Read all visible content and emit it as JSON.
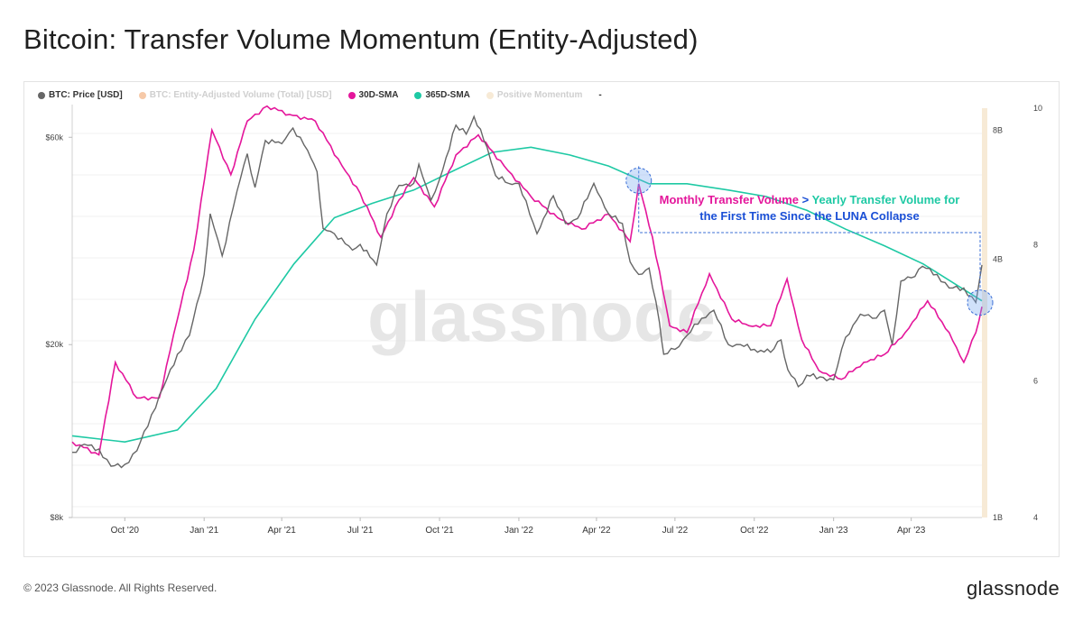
{
  "header": {
    "title": "Bitcoin: Transfer Volume Momentum (Entity-Adjusted)"
  },
  "legend": [
    {
      "label": "BTC: Price [USD]",
      "color": "#666666",
      "muted": false
    },
    {
      "label": "BTC: Entity-Adjusted Volume (Total) [USD]",
      "color": "#f6c9a8",
      "muted": true
    },
    {
      "label": "30D-SMA",
      "color": "#e4169b",
      "muted": false
    },
    {
      "label": "365D-SMA",
      "color": "#1ec9a4",
      "muted": false
    },
    {
      "label": "Positive Momentum",
      "color": "#f7ead6",
      "muted": true
    },
    {
      "label": "-",
      "color": "",
      "muted": false
    }
  ],
  "annotation": {
    "line1_pink": "Monthly Transfer Volume",
    "line1_sep": " > ",
    "line1_green": "Yearly Transfer Volume for",
    "line2": "the First Time Since the LUNA Collapse",
    "pink_color": "#e4169b",
    "green_color": "#1ec9a4",
    "blue_color": "#1a4fd6"
  },
  "watermark": "glassnode",
  "footer": {
    "copyright": "© 2023 Glassnode. All Rights Reserved.",
    "logo": "glassnode"
  },
  "chart_data": {
    "type": "line",
    "x_range": [
      "2020-08-01",
      "2023-06-22"
    ],
    "x_ticks": [
      "Oct '20",
      "Jan '21",
      "Apr '21",
      "Jul '21",
      "Oct '21",
      "Jan '22",
      "Apr '22",
      "Jul '22",
      "Oct '22",
      "Jan '23",
      "Apr '23"
    ],
    "x_tick_dates": [
      "2020-10-01",
      "2021-01-01",
      "2021-04-01",
      "2021-07-01",
      "2021-10-01",
      "2022-01-01",
      "2022-04-01",
      "2022-07-01",
      "2022-10-01",
      "2023-01-01",
      "2023-04-01"
    ],
    "y_left": {
      "scale": "log",
      "range": [
        8000,
        70000
      ],
      "ticks": [
        8000,
        20000,
        60000
      ],
      "tick_labels": [
        "$8k",
        "$20k",
        "$60k"
      ]
    },
    "y_right_volume": {
      "scale": "log",
      "range": [
        1,
        9
      ],
      "ticks": [
        1,
        4,
        8
      ],
      "tick_labels": [
        "1B",
        "4B",
        "8B"
      ]
    },
    "y_right_price_axis": {
      "range": [
        4,
        10
      ],
      "ticks": [
        4,
        6,
        8,
        10
      ],
      "tick_labels": [
        "4",
        "6",
        "8",
        "10"
      ]
    },
    "series": [
      {
        "name": "BTC: Price [USD]",
        "axis": "left",
        "color": "#666666",
        "x": [
          "2020-08-01",
          "2020-08-15",
          "2020-09-01",
          "2020-09-15",
          "2020-10-01",
          "2020-10-15",
          "2020-11-01",
          "2020-11-15",
          "2020-12-01",
          "2020-12-15",
          "2021-01-01",
          "2021-01-08",
          "2021-01-22",
          "2021-02-08",
          "2021-02-20",
          "2021-03-01",
          "2021-03-13",
          "2021-04-01",
          "2021-04-14",
          "2021-05-01",
          "2021-05-12",
          "2021-05-19",
          "2021-06-01",
          "2021-06-22",
          "2021-07-01",
          "2021-07-20",
          "2021-08-01",
          "2021-08-15",
          "2021-09-01",
          "2021-09-07",
          "2021-09-21",
          "2021-10-01",
          "2021-10-20",
          "2021-11-01",
          "2021-11-10",
          "2021-11-25",
          "2021-12-05",
          "2021-12-20",
          "2022-01-01",
          "2022-01-22",
          "2022-02-10",
          "2022-02-24",
          "2022-03-10",
          "2022-03-29",
          "2022-04-15",
          "2022-05-01",
          "2022-05-10",
          "2022-05-20",
          "2022-06-01",
          "2022-06-13",
          "2022-06-18",
          "2022-07-01",
          "2022-07-15",
          "2022-08-01",
          "2022-08-15",
          "2022-09-01",
          "2022-09-15",
          "2022-10-01",
          "2022-10-20",
          "2022-11-01",
          "2022-11-09",
          "2022-11-21",
          "2022-12-01",
          "2022-12-20",
          "2023-01-01",
          "2023-01-15",
          "2023-02-01",
          "2023-02-15",
          "2023-03-01",
          "2023-03-10",
          "2023-03-20",
          "2023-04-01",
          "2023-04-14",
          "2023-05-01",
          "2023-05-15",
          "2023-06-01",
          "2023-06-15",
          "2023-06-22"
        ],
        "values": [
          11300,
          11800,
          11500,
          10500,
          10600,
          11400,
          13800,
          16000,
          19000,
          21000,
          29000,
          40000,
          32000,
          45000,
          55000,
          46000,
          59000,
          58000,
          63000,
          56000,
          50000,
          37000,
          36000,
          33000,
          34000,
          30500,
          40000,
          46500,
          47000,
          52000,
          43000,
          48000,
          64000,
          61000,
          67000,
          57000,
          49000,
          47000,
          47000,
          36000,
          44000,
          38000,
          39000,
          47000,
          40000,
          38000,
          31000,
          29000,
          30000,
          22500,
          19000,
          19500,
          21000,
          23000,
          24000,
          20000,
          20000,
          19500,
          19200,
          20500,
          17500,
          16000,
          17000,
          16800,
          16600,
          20800,
          23500,
          23000,
          24000,
          20000,
          28000,
          28500,
          30300,
          29000,
          27000,
          27000,
          25000,
          30500
        ]
      },
      {
        "name": "30D-SMA",
        "axis": "right",
        "color": "#e4169b",
        "x": [
          "2020-08-01",
          "2020-09-01",
          "2020-09-20",
          "2020-10-15",
          "2020-11-10",
          "2020-12-01",
          "2020-12-20",
          "2021-01-10",
          "2021-02-01",
          "2021-02-20",
          "2021-03-15",
          "2021-04-10",
          "2021-05-10",
          "2021-06-10",
          "2021-07-01",
          "2021-07-25",
          "2021-08-15",
          "2021-09-01",
          "2021-09-25",
          "2021-10-20",
          "2021-11-15",
          "2021-12-15",
          "2022-01-15",
          "2022-02-15",
          "2022-03-15",
          "2022-04-15",
          "2022-05-10",
          "2022-05-20",
          "2022-06-05",
          "2022-06-25",
          "2022-07-15",
          "2022-08-10",
          "2022-09-05",
          "2022-09-25",
          "2022-10-20",
          "2022-11-08",
          "2022-11-25",
          "2022-12-15",
          "2023-01-10",
          "2023-02-05",
          "2023-03-01",
          "2023-03-25",
          "2023-04-20",
          "2023-05-15",
          "2023-06-01",
          "2023-06-15",
          "2023-06-22"
        ],
        "values": [
          1.5,
          1.4,
          2.3,
          1.9,
          1.9,
          2.9,
          4.2,
          8.0,
          6.3,
          8.4,
          9.1,
          8.7,
          8.4,
          6.6,
          5.7,
          4.5,
          5.5,
          6.2,
          5.3,
          7.0,
          7.8,
          6.6,
          5.6,
          5.0,
          4.7,
          5.1,
          4.4,
          6.0,
          4.5,
          2.8,
          2.7,
          3.7,
          2.9,
          2.8,
          2.8,
          3.6,
          2.6,
          2.2,
          2.1,
          2.3,
          2.4,
          2.7,
          3.2,
          2.7,
          2.3,
          2.7,
          3.1
        ]
      },
      {
        "name": "365D-SMA",
        "axis": "right",
        "color": "#1ec9a4",
        "x": [
          "2020-08-01",
          "2020-10-01",
          "2020-12-01",
          "2021-01-15",
          "2021-03-01",
          "2021-04-15",
          "2021-06-01",
          "2021-07-15",
          "2021-09-01",
          "2021-10-15",
          "2021-12-01",
          "2022-01-15",
          "2022-03-01",
          "2022-04-15",
          "2022-06-01",
          "2022-07-15",
          "2022-09-01",
          "2022-10-15",
          "2022-12-01",
          "2023-01-15",
          "2023-03-01",
          "2023-04-15",
          "2023-06-01",
          "2023-06-22"
        ],
        "values": [
          1.55,
          1.5,
          1.6,
          2.0,
          2.9,
          3.9,
          5.0,
          5.4,
          5.8,
          6.4,
          7.1,
          7.3,
          7.0,
          6.6,
          6.0,
          6.0,
          5.8,
          5.6,
          5.2,
          4.7,
          4.3,
          3.9,
          3.4,
          3.2
        ]
      }
    ],
    "annotation_points": [
      {
        "date": "2022-05-20",
        "volume": 6.1,
        "label": "LUNA collapse crossover"
      },
      {
        "date": "2023-06-22",
        "volume": 3.2,
        "label": "Current crossover"
      }
    ]
  }
}
